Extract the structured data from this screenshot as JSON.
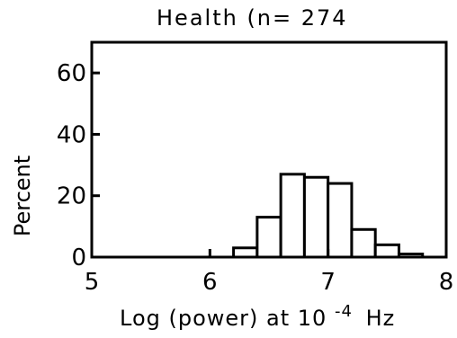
{
  "chart_data": {
    "type": "bar",
    "title": "Health (n= 274",
    "xlabel": "Log (power) at 10",
    "xlabel_superscript": "-4",
    "xlabel_suffix": "Hz",
    "ylabel": "Percent",
    "xlim": [
      5,
      8
    ],
    "ylim": [
      0,
      70
    ],
    "x_ticks": [
      5,
      6,
      7,
      8
    ],
    "x_tick_labels": [
      "5",
      "6",
      "7",
      "8"
    ],
    "y_ticks": [
      0,
      20,
      40,
      60
    ],
    "y_tick_labels": [
      "0",
      "20",
      "40",
      "60"
    ],
    "bin_width": 0.2,
    "bins": [
      {
        "start": 6.2,
        "value": 3
      },
      {
        "start": 6.4,
        "value": 13
      },
      {
        "start": 6.6,
        "value": 27
      },
      {
        "start": 6.8,
        "value": 26
      },
      {
        "start": 7.0,
        "value": 24
      },
      {
        "start": 7.2,
        "value": 9
      },
      {
        "start": 7.4,
        "value": 4
      },
      {
        "start": 7.6,
        "value": 1
      }
    ],
    "grid": false,
    "legend": "none"
  }
}
